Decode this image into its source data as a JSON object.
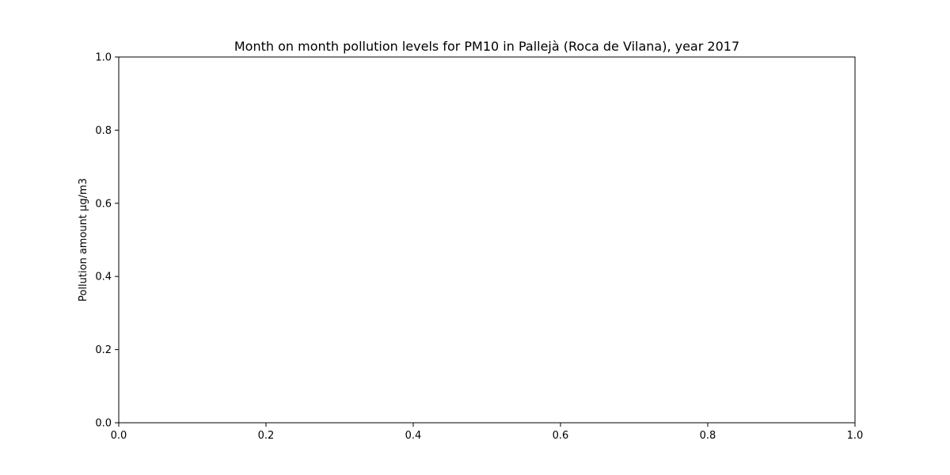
{
  "chart_data": {
    "type": "line",
    "title": "Month on month pollution levels for PM10 in Pallejà (Roca de Vilana), year 2017",
    "xlabel": "",
    "ylabel": "Pollution amount µg/m3",
    "xlim": [
      0.0,
      1.0
    ],
    "ylim": [
      0.0,
      1.0
    ],
    "xticks": [
      0.0,
      0.2,
      0.4,
      0.6,
      0.8,
      1.0
    ],
    "yticks": [
      0.0,
      0.2,
      0.4,
      0.6,
      0.8,
      1.0
    ],
    "xtick_labels": [
      "0.0",
      "0.2",
      "0.4",
      "0.6",
      "0.8",
      "1.0"
    ],
    "ytick_labels": [
      "0.0",
      "0.2",
      "0.4",
      "0.6",
      "0.8",
      "1.0"
    ],
    "grid": false,
    "series": []
  }
}
